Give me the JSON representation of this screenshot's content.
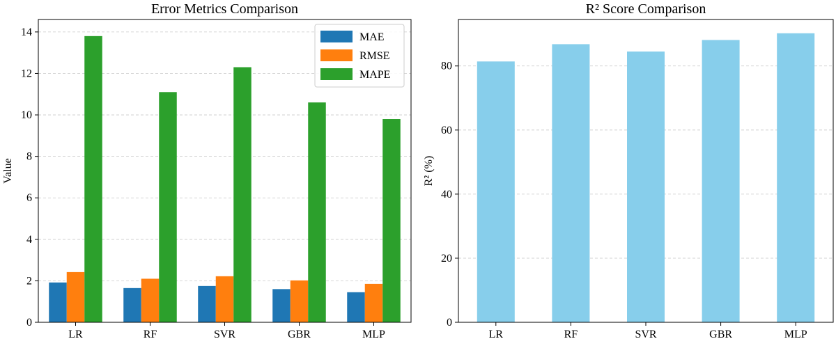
{
  "chart_data": [
    {
      "type": "bar",
      "title": "Error Metrics Comparison",
      "xlabel": "",
      "ylabel": "Value",
      "categories": [
        "LR",
        "RF",
        "SVR",
        "GBR",
        "MLP"
      ],
      "series": [
        {
          "name": "MAE",
          "color": "#1f77b4",
          "values": [
            1.92,
            1.65,
            1.75,
            1.6,
            1.45
          ]
        },
        {
          "name": "RMSE",
          "color": "#ff7f0e",
          "values": [
            2.42,
            2.1,
            2.22,
            2.02,
            1.85
          ]
        },
        {
          "name": "MAPE",
          "color": "#2ca02c",
          "values": [
            13.8,
            11.1,
            12.3,
            10.6,
            9.8
          ]
        }
      ],
      "ylim": [
        0,
        14.6
      ],
      "yticks": [
        0,
        2,
        4,
        6,
        8,
        10,
        12,
        14
      ],
      "grid": "y-dashed",
      "legend": "top-right"
    },
    {
      "type": "bar",
      "title": "R² Score Comparison",
      "xlabel": "",
      "ylabel": "R² (%)",
      "categories": [
        "LR",
        "RF",
        "SVR",
        "GBR",
        "MLP"
      ],
      "series": [
        {
          "name": "R²",
          "color": "#87ceeb",
          "values": [
            81.4,
            86.8,
            84.5,
            88.1,
            90.2
          ]
        }
      ],
      "ylim": [
        0,
        94.5
      ],
      "yticks": [
        0,
        20,
        40,
        60,
        80
      ],
      "grid": "y-dashed",
      "legend": "none"
    }
  ]
}
